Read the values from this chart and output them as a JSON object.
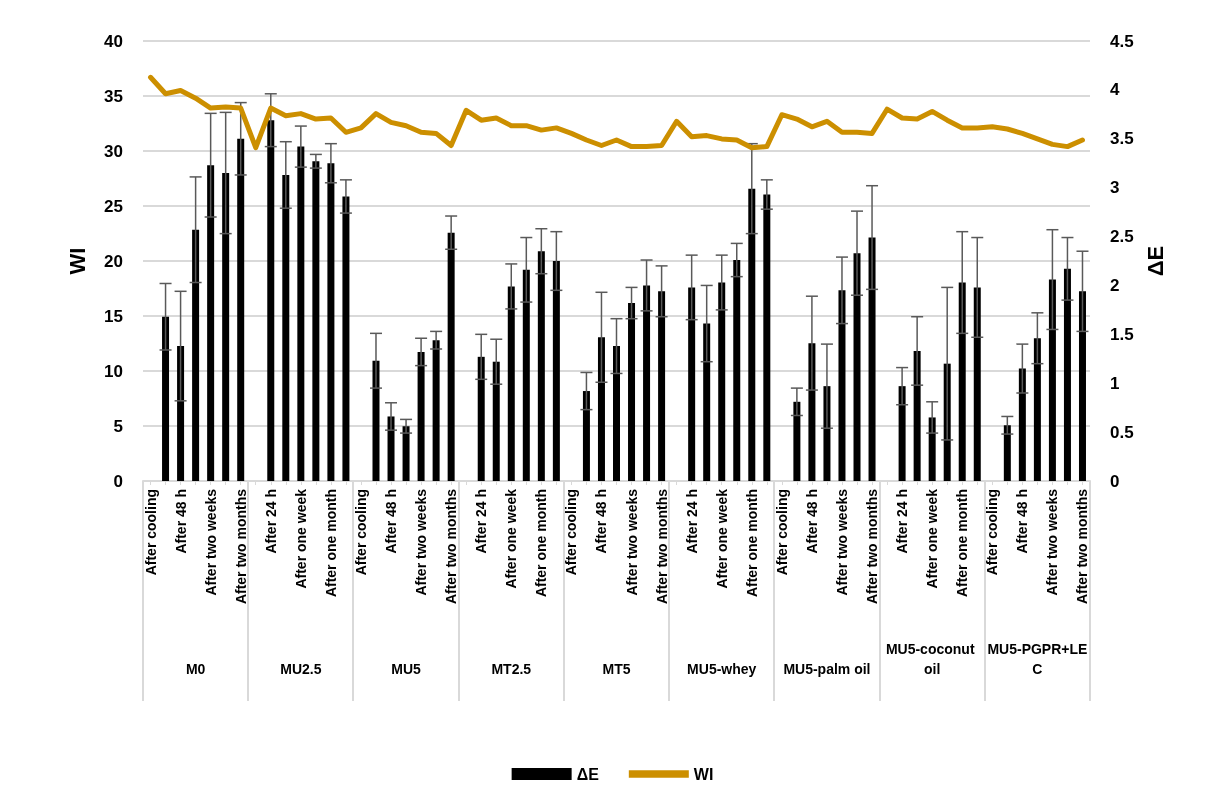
{
  "chart_data": {
    "type": "bar",
    "categories": [
      "After cooling",
      null,
      "After 48 h",
      null,
      "After two weeks",
      null,
      "After two months",
      null,
      "After 24 h",
      null,
      "After one week",
      null,
      "After one month",
      null,
      "After cooling",
      null,
      "After 48 h",
      null,
      "After two weeks",
      null,
      "After two months",
      null,
      "After 24 h",
      null,
      "After one week",
      null,
      "After one month",
      null,
      "After cooling",
      null,
      "After 48 h",
      null,
      "After two weeks",
      null,
      "After two months",
      null,
      "After 24 h",
      null,
      "After one week",
      null,
      "After one month",
      null,
      "After cooling",
      null,
      "After 48 h",
      null,
      "After two weeks",
      null,
      "After two months",
      null,
      "After 24 h",
      null,
      "After one week",
      null,
      "After one month",
      null,
      "After cooling",
      null,
      "After 48 h",
      null,
      "After two weeks",
      null,
      "After two months"
    ],
    "ylabel": "WI",
    "y2label": "ΔE",
    "ylim": [
      0,
      40
    ],
    "yticks": [
      0,
      5,
      10,
      15,
      20,
      25,
      30,
      35,
      40
    ],
    "y2lim": [
      0,
      4.5
    ],
    "y2ticks": [
      0,
      0.5,
      1,
      1.5,
      2,
      2.5,
      3,
      3.5,
      4,
      4.5
    ],
    "grid": "y",
    "legend": "bottom",
    "marker": "none",
    "annotations": [
      "M0",
      "MU2.5",
      "MU5",
      "MT2.5",
      "MT5",
      "MU5-whey",
      "MU5-palm oil",
      "MU5-coconut oil",
      "MU5-PGPR+LEC"
    ],
    "series": [
      {
        "name": "ΔE",
        "axis": "y2",
        "color": "#000000",
        "values": [
          null,
          1.68,
          1.38,
          2.57,
          3.23,
          3.15,
          3.5,
          null,
          3.69,
          3.13,
          3.42,
          3.27,
          3.25,
          2.91,
          null,
          1.23,
          0.66,
          0.56,
          1.32,
          1.44,
          2.54,
          null,
          1.27,
          1.22,
          1.99,
          2.16,
          2.35,
          2.25,
          null,
          0.92,
          1.47,
          1.38,
          1.82,
          2.0,
          1.94,
          null,
          1.98,
          1.61,
          2.03,
          2.26,
          2.99,
          2.93,
          null,
          0.81,
          1.41,
          0.97,
          1.95,
          2.33,
          2.49,
          null,
          0.97,
          1.33,
          0.65,
          1.2,
          2.03,
          1.98,
          null,
          0.57,
          1.15,
          1.46,
          2.06,
          2.17,
          1.94
        ],
        "errors": [
          null,
          0.34,
          0.56,
          0.54,
          0.53,
          0.62,
          0.37,
          null,
          0.27,
          0.34,
          0.21,
          0.07,
          0.2,
          0.17,
          null,
          0.28,
          0.14,
          0.07,
          0.14,
          0.09,
          0.17,
          null,
          0.23,
          0.23,
          0.23,
          0.33,
          0.23,
          0.3,
          null,
          0.19,
          0.46,
          0.28,
          0.16,
          0.26,
          0.26,
          null,
          0.33,
          0.39,
          0.28,
          0.17,
          0.46,
          0.15,
          null,
          0.14,
          0.48,
          0.43,
          0.34,
          0.43,
          0.53,
          null,
          0.19,
          0.35,
          0.16,
          0.78,
          0.52,
          0.51,
          null,
          0.09,
          0.25,
          0.26,
          0.51,
          0.32,
          0.41
        ]
      },
      {
        "name": "WI",
        "type": "line",
        "color": "#cc8f00",
        "values": [
          36.7,
          35.2,
          35.5,
          34.8,
          33.9,
          34.0,
          33.9,
          30.3,
          33.9,
          33.2,
          33.4,
          32.9,
          33.0,
          31.7,
          32.1,
          33.4,
          32.6,
          32.3,
          31.7,
          31.6,
          30.5,
          33.7,
          32.8,
          33.0,
          32.3,
          32.3,
          31.9,
          32.1,
          31.6,
          31.0,
          30.5,
          31.0,
          30.4,
          30.4,
          30.5,
          32.7,
          31.3,
          31.4,
          31.1,
          31.0,
          30.3,
          30.4,
          33.3,
          32.9,
          32.2,
          32.7,
          31.7,
          31.7,
          31.6,
          33.8,
          33.0,
          32.9,
          33.6,
          32.8,
          32.1,
          32.1,
          32.2,
          32.0,
          31.6,
          31.1,
          30.6,
          30.4,
          31.0
        ]
      }
    ]
  }
}
